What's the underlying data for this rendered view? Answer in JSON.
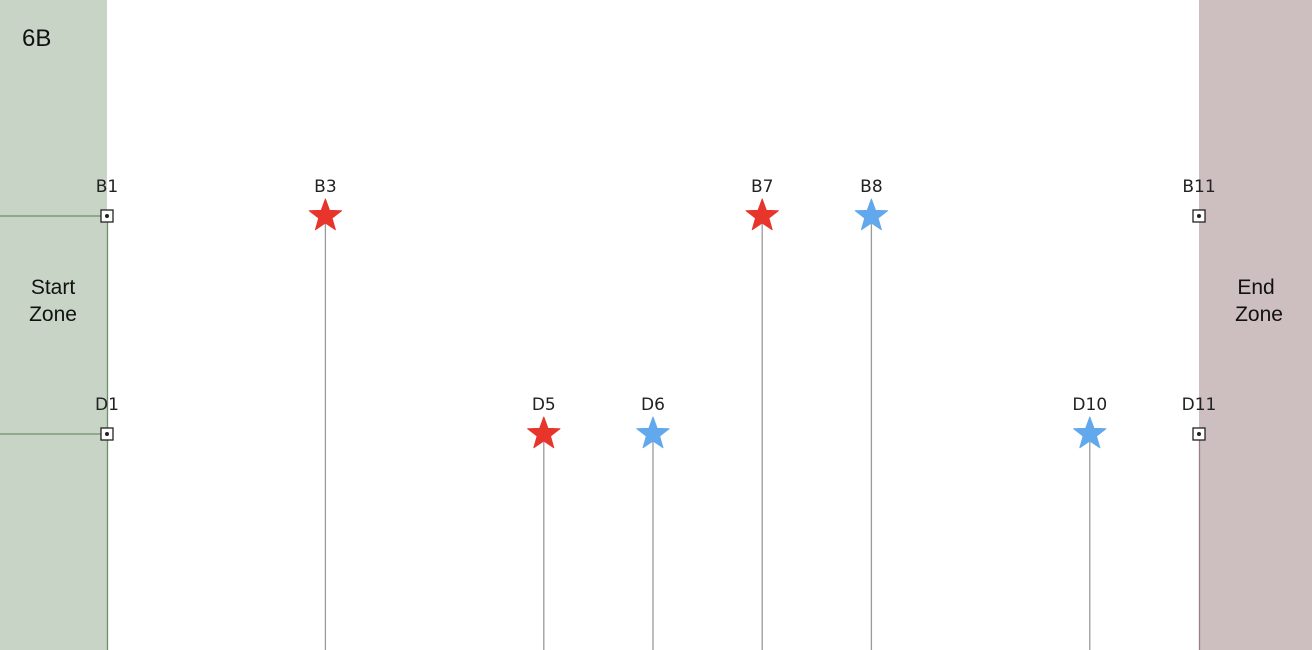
{
  "panel_label": "6B",
  "start_zone": {
    "line1": "Start",
    "line2": "Zone",
    "color": "#c8d4c6"
  },
  "end_zone": {
    "line1": "End",
    "line2": "Zone",
    "color": "#cdbfbf"
  },
  "colors": {
    "red_star": "#e8352c",
    "blue_star": "#62a8ec",
    "stem": "#9a9a9a",
    "start_line": "#6e8f6a",
    "end_line": "#9b7f82"
  },
  "rows": [
    {
      "id": "B",
      "markers": [
        {
          "label": "B1",
          "col": 1,
          "type": "endpoint"
        },
        {
          "label": "B3",
          "col": 3,
          "type": "red-star"
        },
        {
          "label": "B7",
          "col": 7,
          "type": "red-star"
        },
        {
          "label": "B8",
          "col": 8,
          "type": "blue-star"
        },
        {
          "label": "B11",
          "col": 11,
          "type": "endpoint"
        }
      ]
    },
    {
      "id": "D",
      "markers": [
        {
          "label": "D1",
          "col": 1,
          "type": "endpoint"
        },
        {
          "label": "D5",
          "col": 5,
          "type": "red-star"
        },
        {
          "label": "D6",
          "col": 6,
          "type": "blue-star"
        },
        {
          "label": "D10",
          "col": 10,
          "type": "blue-star"
        },
        {
          "label": "D11",
          "col": 11,
          "type": "endpoint"
        }
      ]
    }
  ]
}
